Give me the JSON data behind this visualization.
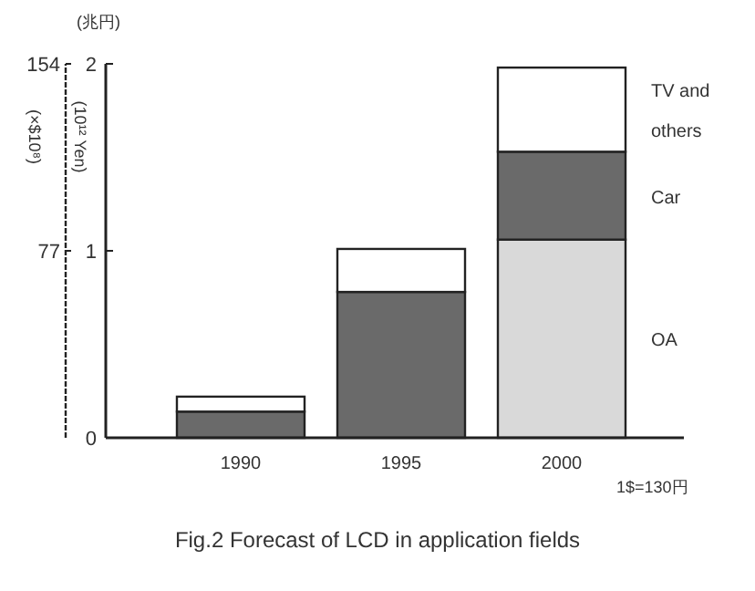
{
  "chart_data": {
    "type": "bar",
    "stacked": true,
    "title": "Fig.2 Forecast of LCD in application fields",
    "categories": [
      "1990",
      "1995",
      "2000"
    ],
    "series": [
      {
        "name": "OA",
        "colors": [
          "#6a6a6a",
          "#6a6a6a",
          "#d9d9d9"
        ],
        "values": [
          0.14,
          0.78,
          1.06
        ]
      },
      {
        "name": "Car",
        "color": "#6a6a6a",
        "values": [
          0,
          0,
          0.47
        ]
      },
      {
        "name": "TV and others",
        "color": "#ffffff",
        "values": [
          0.08,
          0.23,
          0.45
        ]
      }
    ],
    "ylim": [
      0,
      2
    ],
    "yticks": [
      0,
      1,
      2
    ],
    "ylabel": "(10¹² Yen)",
    "y2lim": [
      0,
      154
    ],
    "y2ticks": [
      77,
      154
    ],
    "y2label": "(×$10⁸)",
    "annotations": [
      "(兆円)",
      "1$=130円"
    ],
    "grid": false
  }
}
